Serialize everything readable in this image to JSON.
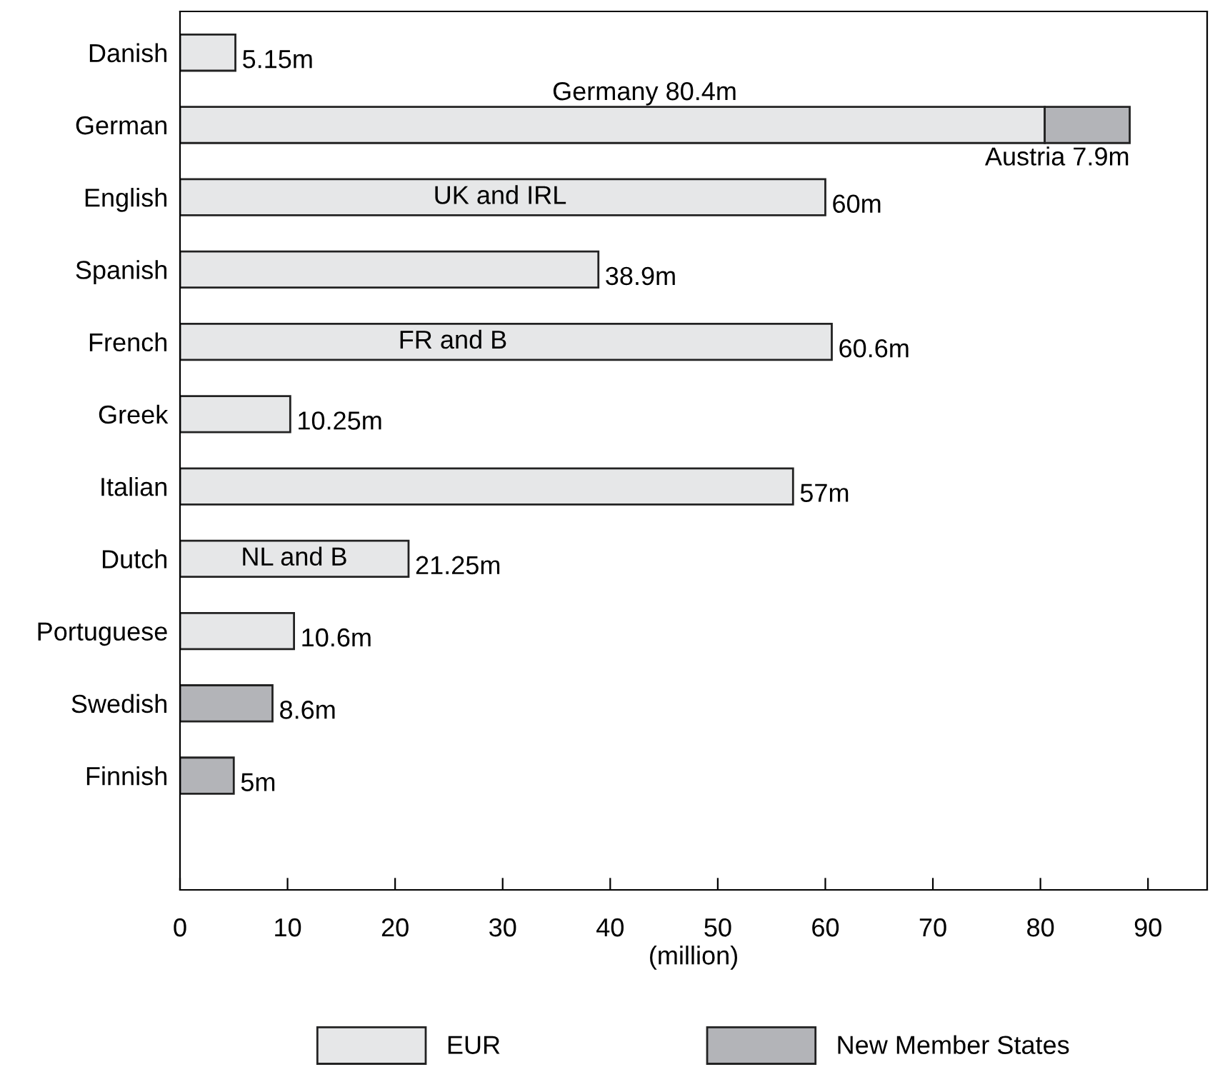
{
  "chart_data": {
    "type": "bar",
    "orientation": "horizontal",
    "stacked": true,
    "categories": [
      "Danish",
      "German",
      "English",
      "Spanish",
      "French",
      "Greek",
      "Italian",
      "Dutch",
      "Portuguese",
      "Swedish",
      "Finnish"
    ],
    "series": [
      {
        "name": "EUR",
        "color": "#e6e7e8",
        "values": [
          5.15,
          80.4,
          60,
          38.9,
          60.6,
          10.25,
          57,
          21.25,
          10.6,
          null,
          null
        ],
        "value_labels": [
          "5.15m",
          "Germany 80.4m",
          "60m",
          "38.9m",
          "60.6m",
          "10.25m",
          "57m",
          "21.25m",
          "10.6m",
          null,
          null
        ]
      },
      {
        "name": "New Member States",
        "color": "#b3b4b8",
        "values": [
          null,
          7.9,
          null,
          null,
          null,
          null,
          null,
          null,
          null,
          8.6,
          5
        ],
        "value_labels": [
          null,
          "Austria 7.9m",
          null,
          null,
          null,
          null,
          null,
          null,
          null,
          "8.6m",
          "5m"
        ]
      }
    ],
    "xlabel": "(million)",
    "xlim": [
      0,
      95.5
    ],
    "xticks": [
      0,
      10,
      20,
      30,
      40,
      50,
      60,
      70,
      80,
      90
    ],
    "annotations": [
      "UK and IRL",
      "FR and B",
      "NL and B"
    ],
    "grid": false,
    "legend": "bottom"
  }
}
